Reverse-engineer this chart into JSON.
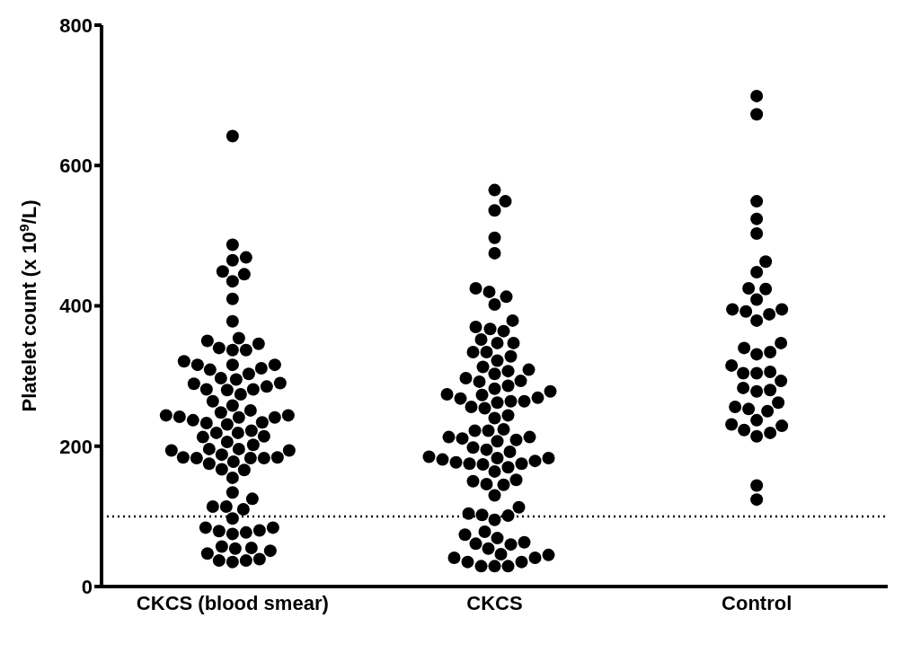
{
  "chart_data": {
    "type": "scatter",
    "ylabel": "Platelet count (x 10$^{9}$/L)",
    "categories": [
      "CKCS (blood smear)",
      "CKCS",
      "Control"
    ],
    "series": [
      {
        "color": "#000000",
        "x": [
          "CKCS (blood smear)",
          "CKCS (blood smear)",
          "CKCS (blood smear)",
          "CKCS (blood smear)",
          "CKCS (blood smear)",
          "CKCS (blood smear)",
          "CKCS (blood smear)",
          "CKCS (blood smear)",
          "CKCS (blood smear)",
          "CKCS (blood smear)",
          "CKCS (blood smear)",
          "CKCS (blood smear)",
          "CKCS (blood smear)",
          "CKCS (blood smear)",
          "CKCS (blood smear)",
          "CKCS (blood smear)",
          "CKCS (blood smear)",
          "CKCS (blood smear)",
          "CKCS (blood smear)",
          "CKCS (blood smear)",
          "CKCS (blood smear)",
          "CKCS (blood smear)",
          "CKCS (blood smear)",
          "CKCS (blood smear)",
          "CKCS (blood smear)",
          "CKCS (blood smear)",
          "CKCS (blood smear)",
          "CKCS (blood smear)",
          "CKCS (blood smear)",
          "CKCS (blood smear)",
          "CKCS (blood smear)",
          "CKCS (blood smear)",
          "CKCS (blood smear)",
          "CKCS (blood smear)",
          "CKCS (blood smear)",
          "CKCS (blood smear)",
          "CKCS (blood smear)",
          "CKCS (blood smear)",
          "CKCS (blood smear)",
          "CKCS (blood smear)",
          "CKCS (blood smear)",
          "CKCS (blood smear)",
          "CKCS (blood smear)",
          "CKCS (blood smear)",
          "CKCS (blood smear)",
          "CKCS (blood smear)",
          "CKCS (blood smear)",
          "CKCS (blood smear)",
          "CKCS (blood smear)",
          "CKCS (blood smear)",
          "CKCS (blood smear)",
          "CKCS (blood smear)",
          "CKCS (blood smear)",
          "CKCS (blood smear)",
          "CKCS (blood smear)",
          "CKCS (blood smear)",
          "CKCS (blood smear)",
          "CKCS (blood smear)",
          "CKCS (blood smear)",
          "CKCS (blood smear)",
          "CKCS (blood smear)",
          "CKCS (blood smear)",
          "CKCS (blood smear)",
          "CKCS (blood smear)",
          "CKCS (blood smear)",
          "CKCS (blood smear)",
          "CKCS (blood smear)",
          "CKCS (blood smear)",
          "CKCS (blood smear)",
          "CKCS (blood smear)",
          "CKCS (blood smear)",
          "CKCS (blood smear)",
          "CKCS (blood smear)",
          "CKCS (blood smear)",
          "CKCS (blood smear)",
          "CKCS (blood smear)",
          "CKCS (blood smear)",
          "CKCS (blood smear)",
          "CKCS (blood smear)",
          "CKCS (blood smear)",
          "CKCS (blood smear)",
          "CKCS (blood smear)",
          "CKCS (blood smear)",
          "CKCS (blood smear)",
          "CKCS (blood smear)",
          "CKCS (blood smear)",
          "CKCS (blood smear)"
        ],
        "values": [
          642,
          487,
          465,
          469,
          445,
          435,
          449,
          410,
          378,
          354,
          346,
          337,
          337,
          340,
          350,
          321,
          316,
          311,
          303,
          309,
          316,
          316,
          295,
          289,
          281,
          280,
          274,
          281,
          285,
          290,
          297,
          258,
          264,
          241,
          234,
          248,
          231,
          244,
          241,
          242,
          244,
          251,
          233,
          237,
          219,
          214,
          213,
          219,
          222,
          202,
          196,
          194,
          184,
          175,
          184,
          183,
          183,
          188,
          194,
          178,
          196,
          183,
          206,
          166,
          155,
          167,
          134,
          125,
          114,
          110,
          114,
          97,
          84,
          79,
          77,
          75,
          80,
          84,
          57,
          55,
          54,
          47,
          37,
          35,
          37,
          39,
          51
        ]
      },
      {
        "color": "#000000",
        "x": [
          "CKCS",
          "CKCS",
          "CKCS",
          "CKCS",
          "CKCS",
          "CKCS",
          "CKCS",
          "CKCS",
          "CKCS",
          "CKCS",
          "CKCS",
          "CKCS",
          "CKCS",
          "CKCS",
          "CKCS",
          "CKCS",
          "CKCS",
          "CKCS",
          "CKCS",
          "CKCS",
          "CKCS",
          "CKCS",
          "CKCS",
          "CKCS",
          "CKCS",
          "CKCS",
          "CKCS",
          "CKCS",
          "CKCS",
          "CKCS",
          "CKCS",
          "CKCS",
          "CKCS",
          "CKCS",
          "CKCS",
          "CKCS",
          "CKCS",
          "CKCS",
          "CKCS",
          "CKCS",
          "CKCS",
          "CKCS",
          "CKCS",
          "CKCS",
          "CKCS",
          "CKCS",
          "CKCS",
          "CKCS",
          "CKCS",
          "CKCS",
          "CKCS",
          "CKCS",
          "CKCS",
          "CKCS",
          "CKCS",
          "CKCS",
          "CKCS",
          "CKCS",
          "CKCS",
          "CKCS",
          "CKCS",
          "CKCS",
          "CKCS",
          "CKCS",
          "CKCS",
          "CKCS",
          "CKCS",
          "CKCS",
          "CKCS",
          "CKCS",
          "CKCS",
          "CKCS",
          "CKCS",
          "CKCS",
          "CKCS",
          "CKCS",
          "CKCS",
          "CKCS",
          "CKCS",
          "CKCS",
          "CKCS",
          "CKCS",
          "CKCS",
          "CKCS",
          "CKCS",
          "CKCS",
          "CKCS",
          "CKCS",
          "CKCS"
        ],
        "values": [
          565,
          549,
          536,
          497,
          475,
          425,
          413,
          402,
          420,
          379,
          367,
          352,
          347,
          347,
          364,
          370,
          334,
          322,
          328,
          334,
          307,
          313,
          309,
          297,
          292,
          282,
          286,
          293,
          303,
          278,
          273,
          268,
          264,
          256,
          254,
          262,
          264,
          269,
          274,
          244,
          240,
          224,
          222,
          222,
          213,
          211,
          207,
          195,
          192,
          198,
          209,
          213,
          185,
          183,
          179,
          175,
          174,
          164,
          170,
          175,
          177,
          181,
          183,
          150,
          145,
          146,
          152,
          130,
          113,
          102,
          95,
          101,
          104,
          78,
          69,
          61,
          60,
          63,
          74,
          45,
          41,
          35,
          29,
          29,
          29,
          35,
          41,
          46,
          54
        ]
      },
      {
        "color": "#000000",
        "x": [
          "Control",
          "Control",
          "Control",
          "Control",
          "Control",
          "Control",
          "Control",
          "Control",
          "Control",
          "Control",
          "Control",
          "Control",
          "Control",
          "Control",
          "Control",
          "Control",
          "Control",
          "Control",
          "Control",
          "Control",
          "Control",
          "Control",
          "Control",
          "Control",
          "Control",
          "Control",
          "Control",
          "Control",
          "Control",
          "Control",
          "Control",
          "Control",
          "Control",
          "Control",
          "Control",
          "Control",
          "Control",
          "Control",
          "Control"
        ],
        "values": [
          699,
          673,
          549,
          524,
          503,
          463,
          448,
          424,
          425,
          409,
          395,
          392,
          388,
          395,
          379,
          347,
          340,
          331,
          334,
          315,
          306,
          304,
          304,
          293,
          280,
          278,
          283,
          262,
          256,
          250,
          253,
          237,
          229,
          219,
          214,
          223,
          231,
          144,
          124
        ]
      }
    ],
    "ylim": [
      0,
      800
    ],
    "yticks": [
      0,
      200,
      400,
      600,
      800
    ],
    "grid": false,
    "marker": "circle",
    "ref_lines": [
      {
        "axis": "y",
        "value": 100,
        "line_style": "dotted",
        "color": "#000000"
      }
    ]
  }
}
